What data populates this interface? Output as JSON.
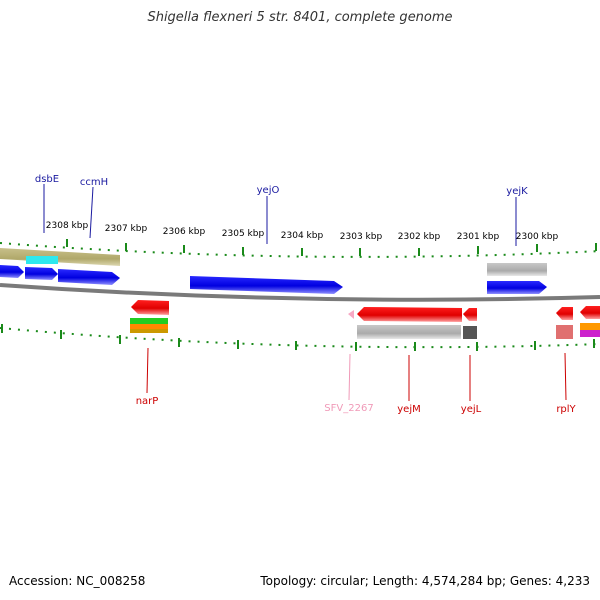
{
  "title": "Shigella flexneri 5 str. 8401, complete genome",
  "footer": {
    "accession": "Accession: NC_008258",
    "summary": "Topology: circular; Length: 4,574,284 bp; Genes: 4,233"
  },
  "scale": {
    "ticks": [
      "2308 kbp",
      "2307 kbp",
      "2306 kbp",
      "2305 kbp",
      "2304 kbp",
      "2303 kbp",
      "2302 kbp",
      "2301 kbp",
      "2300 kbp"
    ]
  },
  "genes_top": [
    {
      "name": "dsbE",
      "color": "#1a1aa0"
    },
    {
      "name": "ccmH",
      "color": "#1a1aa0"
    },
    {
      "name": "yejO",
      "color": "#1a1aa0"
    },
    {
      "name": "yejK",
      "color": "#1a1aa0"
    }
  ],
  "genes_bottom": [
    {
      "name": "narP",
      "color": "#cc0000"
    },
    {
      "name": "SFV_2267",
      "color": "#f09ab8"
    },
    {
      "name": "yejM",
      "color": "#cc0000"
    },
    {
      "name": "yejL",
      "color": "#cc0000"
    },
    {
      "name": "rplY",
      "color": "#cc0000"
    }
  ]
}
